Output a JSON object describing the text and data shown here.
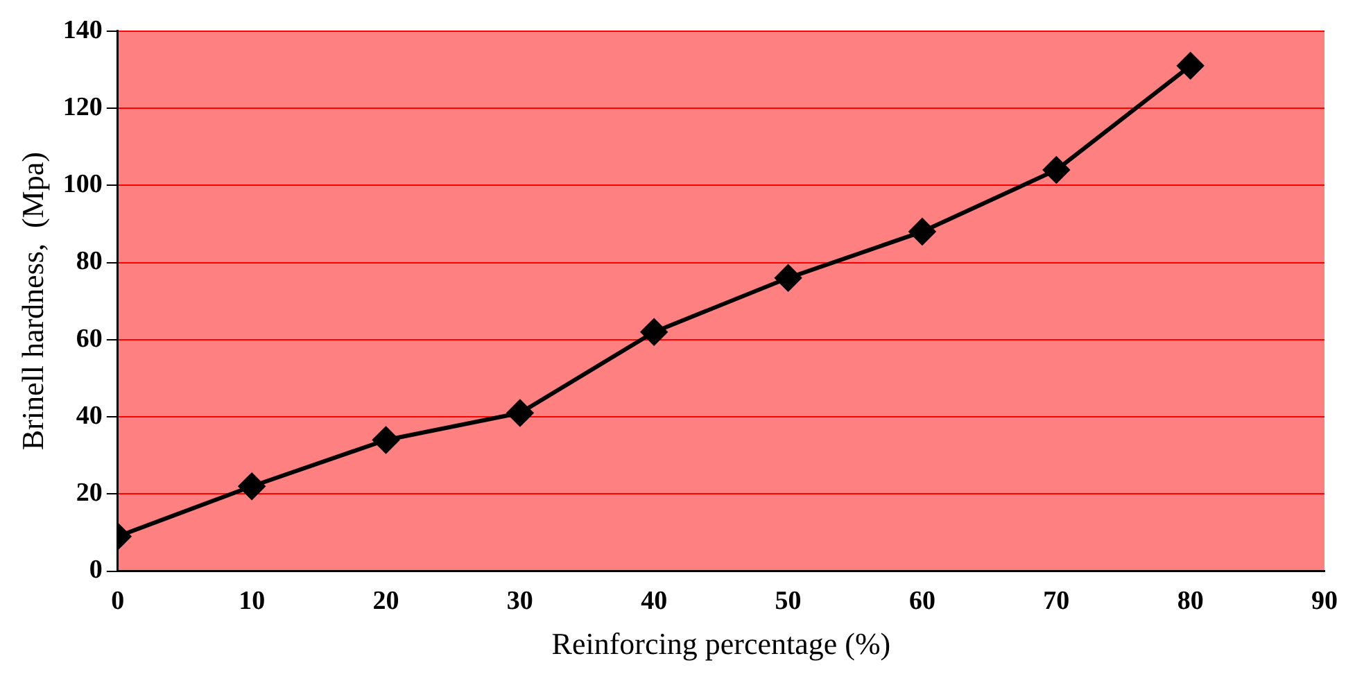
{
  "chart_data": {
    "type": "line",
    "xlabel": "Reinforcing percentage (%)",
    "ylabel": "Brinell hardness,  (Mpa)",
    "x": [
      0,
      10,
      20,
      30,
      40,
      50,
      60,
      70,
      80
    ],
    "series": [
      {
        "color": "#000000",
        "values": [
          9,
          22,
          34,
          41,
          62,
          76,
          88,
          104,
          131
        ]
      }
    ],
    "xlim": [
      0,
      90
    ],
    "xticks": [
      0,
      10,
      20,
      30,
      40,
      50,
      60,
      70,
      80,
      90
    ],
    "ylim": [
      0,
      140
    ],
    "yticks": [
      0,
      20,
      40,
      60,
      80,
      100,
      120,
      140
    ],
    "grid": "y",
    "legend": false,
    "marker": "diamond",
    "line_style": "solid"
  }
}
